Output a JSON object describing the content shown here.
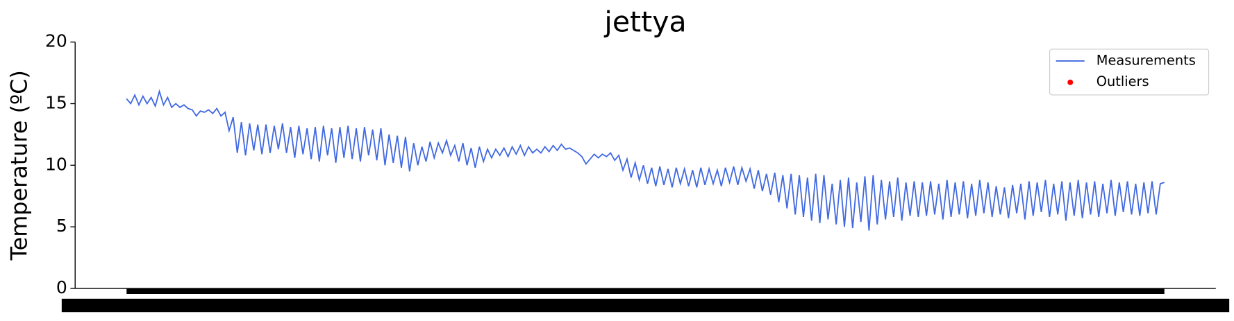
{
  "chart_data": {
    "type": "line",
    "title": "jettya",
    "y_label": "Temperature (ºC)",
    "ylim": [
      0,
      20
    ],
    "yticks": [
      0,
      5,
      10,
      15,
      20
    ],
    "grid": false,
    "legend": "upper right",
    "series": [
      {
        "name": "Measurements",
        "color": "#4169e1",
        "values": [
          15.4,
          15.0,
          15.7,
          14.9,
          15.6,
          15.0,
          15.5,
          14.8,
          16.0,
          14.9,
          15.5,
          14.7,
          15.0,
          14.7,
          14.9,
          14.6,
          14.5,
          14.0,
          14.4,
          14.3,
          14.5,
          14.2,
          14.6,
          14.0,
          14.3,
          12.8,
          13.9,
          11.0,
          13.5,
          10.8,
          13.4,
          11.2,
          13.3,
          10.9,
          13.3,
          11.0,
          13.2,
          11.3,
          13.4,
          11.0,
          13.1,
          10.6,
          13.2,
          10.9,
          13.0,
          10.5,
          13.1,
          10.3,
          13.2,
          10.8,
          13.0,
          10.2,
          13.1,
          10.6,
          13.2,
          10.5,
          13.0,
          10.3,
          13.1,
          10.8,
          12.9,
          10.4,
          13.0,
          10.0,
          12.5,
          10.2,
          12.4,
          9.8,
          12.3,
          9.5,
          11.8,
          10.0,
          11.5,
          10.3,
          11.9,
          10.6,
          11.8,
          11.0,
          12.0,
          10.8,
          11.6,
          10.3,
          11.8,
          10.0,
          11.4,
          9.8,
          11.5,
          10.3,
          11.3,
          10.6,
          11.3,
          10.8,
          11.4,
          10.7,
          11.5,
          10.9,
          11.6,
          10.8,
          11.5,
          11.0,
          11.3,
          11.0,
          11.5,
          11.1,
          11.6,
          11.2,
          11.7,
          11.3,
          11.4,
          11.2,
          11.0,
          10.7,
          10.1,
          10.5,
          10.9,
          10.6,
          10.9,
          10.7,
          11.0,
          10.4,
          10.8,
          9.6,
          10.5,
          9.0,
          10.2,
          8.8,
          10.0,
          8.5,
          9.8,
          8.3,
          9.9,
          8.4,
          9.7,
          8.2,
          9.8,
          8.5,
          9.7,
          8.3,
          9.6,
          8.2,
          9.8,
          8.4,
          9.7,
          8.5,
          9.6,
          8.3,
          9.8,
          8.6,
          9.9,
          8.4,
          9.8,
          8.7,
          9.7,
          8.1,
          9.6,
          7.9,
          9.3,
          7.6,
          9.4,
          7.0,
          9.2,
          6.5,
          9.3,
          6.0,
          9.2,
          5.8,
          9.0,
          5.5,
          9.3,
          5.3,
          9.2,
          5.6,
          8.5,
          5.2,
          8.8,
          5.0,
          9.0,
          4.9,
          8.6,
          5.4,
          9.1,
          4.7,
          9.2,
          5.2,
          8.8,
          5.6,
          8.7,
          5.8,
          9.0,
          5.5,
          8.6,
          5.9,
          8.7,
          5.8,
          8.6,
          5.9,
          8.7,
          6.0,
          8.5,
          5.6,
          8.8,
          5.8,
          8.6,
          6.0,
          8.7,
          5.7,
          8.5,
          5.9,
          8.8,
          6.1,
          8.6,
          5.8,
          8.3,
          6.0,
          8.2,
          5.7,
          8.4,
          6.1,
          8.5,
          5.6,
          8.7,
          5.9,
          8.6,
          6.2,
          8.8,
          5.8,
          8.5,
          6.0,
          8.7,
          5.5,
          8.6,
          5.9,
          8.8,
          5.7,
          8.6,
          6.0,
          8.7,
          5.8,
          8.5,
          6.1,
          8.8,
          5.9,
          8.6,
          6.2,
          8.7,
          6.0,
          8.5,
          5.9,
          8.6,
          6.1,
          8.7,
          6.0,
          8.5,
          8.6
        ]
      },
      {
        "name": "Outliers",
        "color": "#ff0000",
        "marker": "dot",
        "values": []
      }
    ]
  }
}
